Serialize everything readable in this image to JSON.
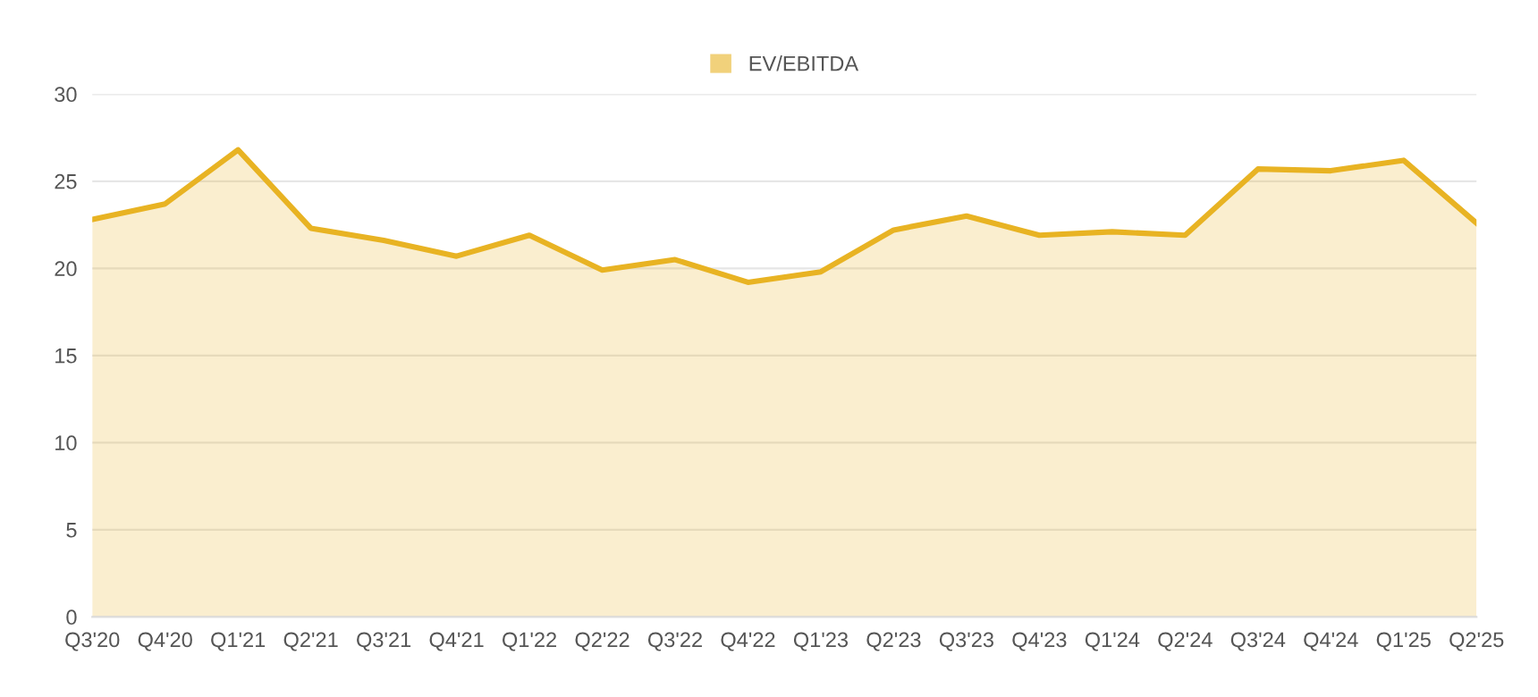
{
  "chart_data": {
    "type": "area",
    "categories": [
      "Q3'20",
      "Q4'20",
      "Q1'21",
      "Q2'21",
      "Q3'21",
      "Q4'21",
      "Q1'22",
      "Q2'22",
      "Q3'22",
      "Q4'22",
      "Q1'23",
      "Q2'23",
      "Q3'23",
      "Q4'23",
      "Q1'24",
      "Q2'24",
      "Q3'24",
      "Q4'24",
      "Q1'25",
      "Q2'25"
    ],
    "series": [
      {
        "name": "EV/EBITDA",
        "color": "#e8b323",
        "values": [
          22.8,
          23.7,
          26.8,
          22.3,
          21.6,
          20.7,
          21.9,
          19.9,
          20.5,
          19.2,
          19.8,
          22.2,
          23.0,
          21.9,
          22.1,
          21.9,
          25.7,
          25.6,
          26.2,
          22.6
        ]
      }
    ],
    "ylim": [
      0,
      30
    ],
    "yticks": [
      0,
      5,
      10,
      15,
      20,
      25,
      30
    ],
    "grid": "y",
    "legend": "top",
    "marker": "none",
    "line_style": "solid"
  }
}
